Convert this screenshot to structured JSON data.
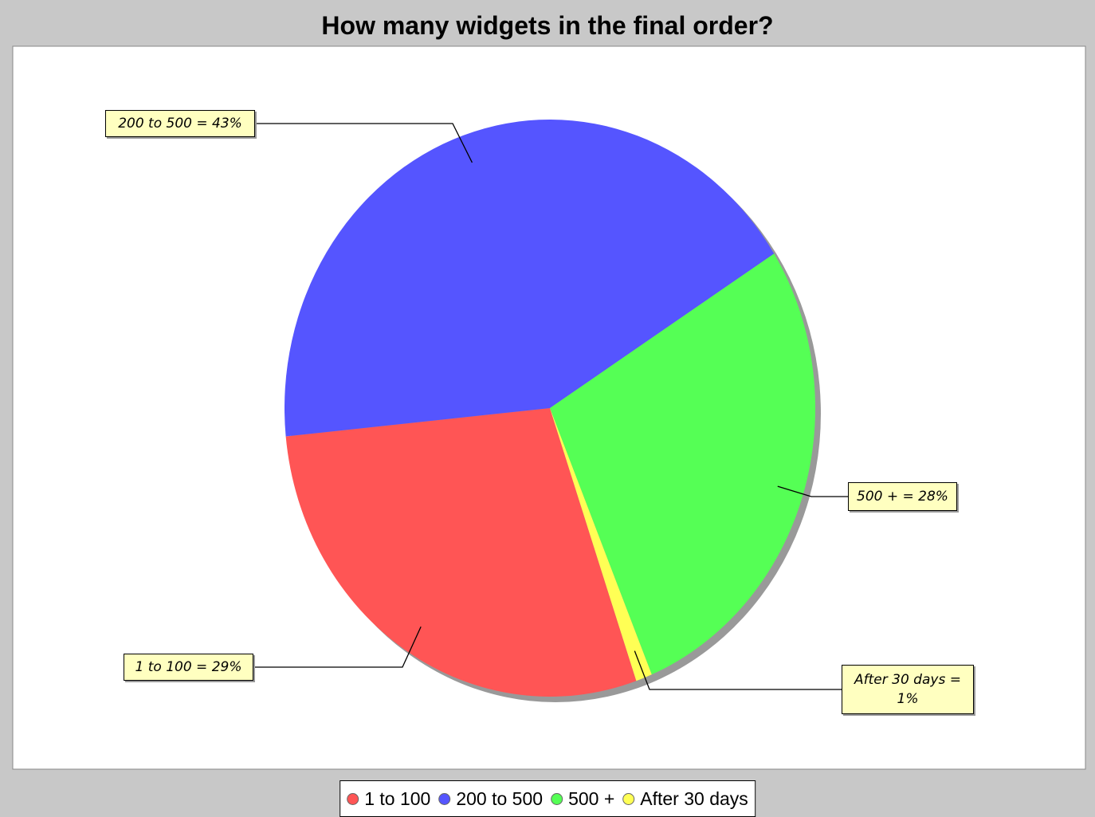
{
  "chart_data": {
    "type": "pie",
    "title": "How many widgets in the final order?",
    "categories": [
      "1 to 100",
      "200 to 500",
      "500 +",
      "After 30 days"
    ],
    "values": [
      29,
      43,
      28,
      1
    ],
    "value_labels": [
      "1 to 100 = 29%",
      "200 to 500 = 43%",
      "500 + = 28%",
      "After 30 days = 1%"
    ],
    "colors": [
      "#ff5555",
      "#5555ff",
      "#55ff55",
      "#ffff55"
    ],
    "legend": "bottom"
  }
}
